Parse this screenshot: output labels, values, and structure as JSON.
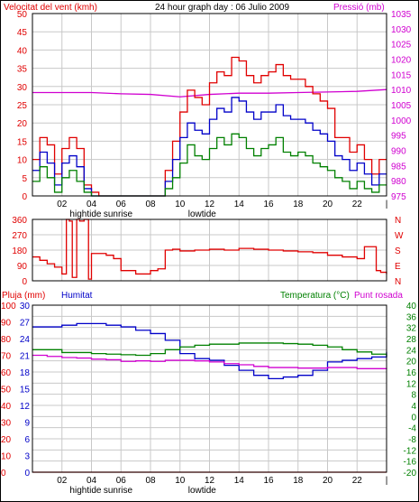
{
  "header": {
    "left_label": "Velocitat del vent (kmh)",
    "title": "24 hour graph day : 06 Julio 2009",
    "right_label": "Pressió (mb)"
  },
  "colors": {
    "red": "#e00000",
    "green": "#008000",
    "blue": "#0000c8",
    "magenta": "#d000d0",
    "frame": "#000000",
    "grid": "#c8c8c8",
    "background": "#ffffff"
  },
  "x_axis": {
    "ticks": [
      "02",
      "04",
      "06",
      "08",
      "10",
      "12",
      "14",
      "16",
      "18",
      "20",
      "22",
      "|"
    ],
    "events_top": [
      "hightide",
      "sunrise",
      "lowtide"
    ],
    "events_bottom": [
      "hightide",
      "sunrise",
      "lowtide"
    ]
  },
  "chart_data": [
    {
      "type": "line",
      "title": "24 hour graph day : 06 Julio 2009",
      "ylabel": "Velocitat del vent (kmh)",
      "ylabel_right": "Pressió (mb)",
      "ylim": [
        0,
        50
      ],
      "yticks": [
        "0",
        "5",
        "10",
        "15",
        "20",
        "25",
        "30",
        "35",
        "40",
        "45",
        "50"
      ],
      "ylim_right": [
        975,
        1035
      ],
      "yticks_right": [
        "975",
        "980",
        "985",
        "990",
        "995",
        "1000",
        "1005",
        "1010",
        "1015",
        "1020",
        "1025",
        "1030",
        "1035"
      ],
      "x_hours": [
        0,
        24
      ],
      "series": [
        {
          "name": "Pressió (mb)",
          "color": "#d000d0",
          "axis": "right",
          "x": [
            0,
            2,
            4,
            6,
            8,
            10,
            12,
            14,
            16,
            18,
            20,
            22,
            24
          ],
          "values": [
            1009,
            1009,
            1009,
            1008.6,
            1008.4,
            1007.6,
            1008.4,
            1008.8,
            1008.8,
            1009,
            1009.2,
            1009.4,
            1010
          ]
        },
        {
          "color": "#e00000",
          "axis": "left",
          "x": [
            0,
            0.5,
            1,
            1.5,
            2,
            2.5,
            3,
            3.5,
            4,
            4.5,
            5,
            5.5,
            6,
            6.5,
            7,
            7.5,
            8,
            8.5,
            9,
            9.5,
            10,
            10.5,
            11,
            11.5,
            12,
            12.5,
            13,
            13.5,
            14,
            14.5,
            15,
            15.5,
            16,
            16.5,
            17,
            17.5,
            18,
            18.5,
            19,
            19.5,
            20,
            20.5,
            21,
            21.5,
            22,
            22.5,
            23,
            23.5,
            24
          ],
          "values": [
            10,
            16,
            14,
            6,
            13,
            16,
            13,
            3,
            1,
            0,
            0,
            0,
            0,
            0,
            0,
            0,
            0,
            0,
            7,
            15,
            23,
            29,
            27,
            25,
            31,
            34,
            33,
            38,
            37,
            33,
            31,
            33,
            34,
            36,
            33,
            32,
            32,
            30,
            28,
            26,
            24,
            16,
            16,
            12,
            14,
            10,
            6,
            10,
            10
          ]
        },
        {
          "color": "#0000c8",
          "axis": "left",
          "x": [
            0,
            0.5,
            1,
            1.5,
            2,
            2.5,
            3,
            3.5,
            4,
            4.5,
            5,
            5.5,
            6,
            6.5,
            7,
            7.5,
            8,
            8.5,
            9,
            9.5,
            10,
            10.5,
            11,
            11.5,
            12,
            12.5,
            13,
            13.5,
            14,
            14.5,
            15,
            15.5,
            16,
            16.5,
            17,
            17.5,
            18,
            18.5,
            19,
            19.5,
            20,
            20.5,
            21,
            21.5,
            22,
            22.5,
            23,
            23.5,
            24
          ],
          "values": [
            7,
            12,
            9,
            3,
            9,
            11,
            8,
            2,
            0,
            0,
            0,
            0,
            0,
            0,
            0,
            0,
            0,
            0,
            4,
            10,
            16,
            20,
            18,
            17,
            21,
            24,
            23,
            27,
            26,
            23,
            21,
            23,
            23,
            25,
            22,
            21,
            21,
            20,
            18,
            17,
            15,
            11,
            10,
            7,
            9,
            6,
            3,
            6,
            6
          ]
        },
        {
          "color": "#008000",
          "axis": "left",
          "x": [
            0,
            0.5,
            1,
            1.5,
            2,
            2.5,
            3,
            3.5,
            4,
            4.5,
            5,
            5.5,
            6,
            6.5,
            7,
            7.5,
            8,
            8.5,
            9,
            9.5,
            10,
            10.5,
            11,
            11.5,
            12,
            12.5,
            13,
            13.5,
            14,
            14.5,
            15,
            15.5,
            16,
            16.5,
            17,
            17.5,
            18,
            18.5,
            19,
            19.5,
            20,
            20.5,
            21,
            21.5,
            22,
            22.5,
            23,
            23.5,
            24
          ],
          "values": [
            4,
            8,
            5,
            1,
            5,
            7,
            4,
            1,
            0,
            0,
            0,
            0,
            0,
            0,
            0,
            0,
            0,
            0,
            2,
            5,
            9,
            14,
            11,
            10,
            13,
            16,
            14,
            17,
            16,
            13,
            11,
            13,
            14,
            16,
            12,
            11,
            12,
            11,
            9,
            8,
            7,
            5,
            4,
            2,
            4,
            2,
            1,
            3,
            3
          ]
        }
      ]
    },
    {
      "type": "line",
      "ylim": [
        0,
        360
      ],
      "yticks": [
        "0",
        "90",
        "180",
        "270",
        "360"
      ],
      "right_labels": [
        "N",
        "W",
        "S",
        "E",
        "N"
      ],
      "x_hours": [
        0,
        24
      ],
      "series": [
        {
          "color": "#e00000",
          "x": [
            0,
            0.5,
            1,
            1.5,
            2,
            2.3,
            2.5,
            2.7,
            3,
            3.2,
            3.5,
            3.8,
            4,
            4.5,
            5,
            5.5,
            6,
            6.5,
            7,
            7.5,
            8,
            8.5,
            9,
            9.5,
            10,
            11,
            12,
            13,
            14,
            15,
            16,
            17,
            18,
            19,
            20,
            21,
            22,
            22.5,
            23,
            23.3,
            23.6,
            24
          ],
          "values": [
            140,
            120,
            100,
            80,
            40,
            360,
            350,
            20,
            360,
            350,
            360,
            10,
            160,
            160,
            150,
            130,
            60,
            60,
            40,
            40,
            60,
            70,
            180,
            185,
            175,
            180,
            185,
            180,
            190,
            185,
            180,
            175,
            170,
            165,
            150,
            140,
            130,
            200,
            200,
            60,
            50,
            40
          ]
        }
      ]
    },
    {
      "type": "line",
      "ylabel": "Pluja (mm)",
      "ylabel2": "Humitat",
      "ylabel_right": "Temperatura (°C)",
      "ylabel_right2": "Punt rosada",
      "ylim_rain": [
        0,
        30
      ],
      "yticks_rain": [
        "0",
        "3",
        "6",
        "9",
        "12",
        "15",
        "18",
        "21",
        "24",
        "27",
        "30"
      ],
      "ylim_humidity": [
        0,
        100
      ],
      "yticks_humidity": [
        "0",
        "10",
        "20",
        "30",
        "40",
        "50",
        "60",
        "70",
        "80",
        "90",
        "100"
      ],
      "ylim_temp": [
        -20,
        40
      ],
      "yticks_temp": [
        "-20",
        "-16",
        "-12",
        "-8",
        "-4",
        "0",
        "4",
        "8",
        "12",
        "16",
        "20",
        "24",
        "28",
        "32",
        "36",
        "40"
      ],
      "x_hours": [
        0,
        24
      ],
      "series": [
        {
          "name": "Pluja (mm)",
          "color": "#e00000",
          "axis": "rain",
          "x": [
            0,
            24
          ],
          "values": [
            0,
            0
          ]
        },
        {
          "name": "Humitat",
          "color": "#0000c8",
          "axis": "humidity",
          "x": [
            0,
            1,
            2,
            3,
            4,
            5,
            6,
            7,
            8,
            9,
            10,
            11,
            12,
            13,
            14,
            15,
            16,
            17,
            18,
            19,
            20,
            21,
            22,
            23,
            24
          ],
          "values": [
            87,
            87,
            88,
            89,
            89,
            88,
            87,
            85,
            83,
            79,
            71,
            68,
            67,
            64,
            61,
            58,
            56,
            57,
            58,
            61,
            66,
            67,
            68,
            69,
            72
          ]
        },
        {
          "name": "Temperatura (°C)",
          "color": "#008000",
          "axis": "temp",
          "x": [
            0,
            1,
            2,
            3,
            4,
            5,
            6,
            7,
            8,
            9,
            10,
            11,
            12,
            13,
            14,
            15,
            16,
            17,
            18,
            19,
            20,
            21,
            22,
            23,
            24
          ],
          "values": [
            24,
            24,
            23,
            23,
            22.6,
            22.4,
            22.2,
            22,
            22.6,
            24,
            25,
            25.6,
            26,
            26,
            26.4,
            26.4,
            26.4,
            26.2,
            26,
            25.6,
            25,
            24,
            23.2,
            22.4,
            21.6
          ]
        },
        {
          "name": "Punt rosada",
          "color": "#d000d0",
          "axis": "temp",
          "x": [
            0,
            1,
            2,
            3,
            4,
            5,
            6,
            7,
            8,
            9,
            10,
            11,
            12,
            13,
            14,
            15,
            16,
            17,
            18,
            19,
            20,
            21,
            22,
            23,
            24
          ],
          "values": [
            22,
            21.6,
            21.2,
            21,
            20.6,
            20.4,
            19.8,
            20,
            19.8,
            20.2,
            20.2,
            20,
            19.6,
            19,
            18.6,
            18,
            17.6,
            17.6,
            17.4,
            17.4,
            17.6,
            17.6,
            17.2,
            17.2,
            17
          ]
        }
      ]
    }
  ]
}
